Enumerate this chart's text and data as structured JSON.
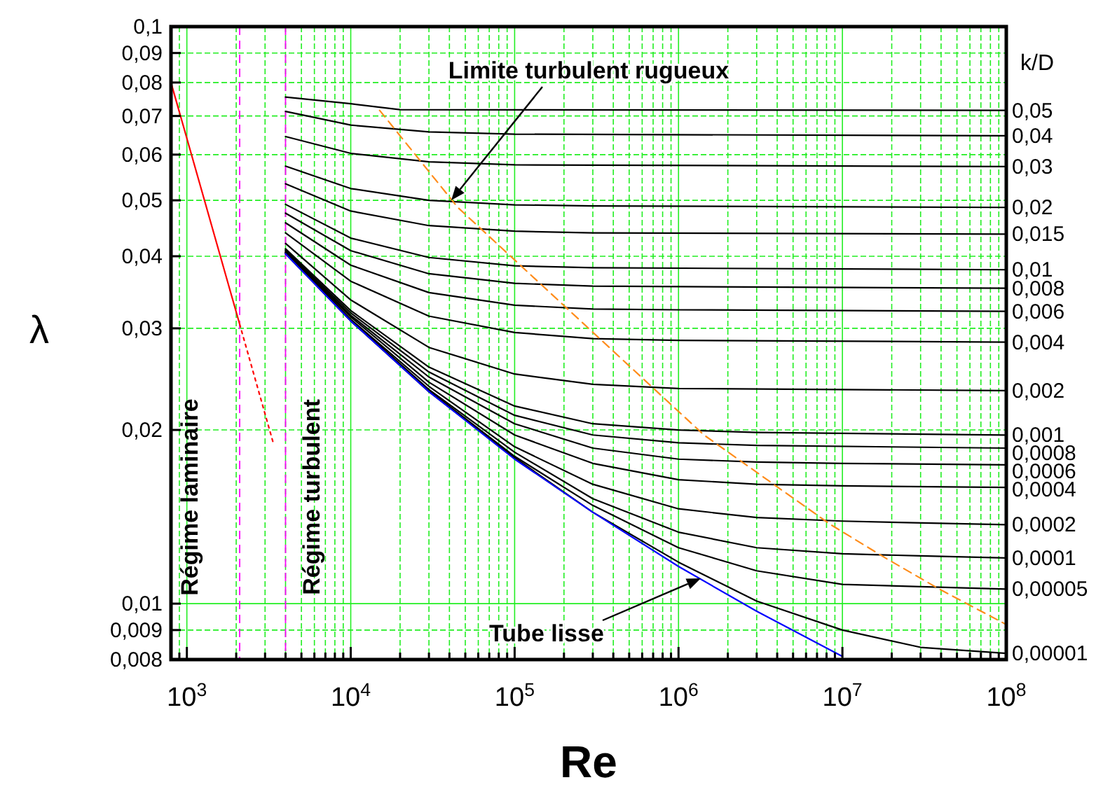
{
  "chart_data": {
    "type": "line",
    "xlabel": "Re",
    "ylabel": "λ",
    "legend_title": "k/D",
    "log": "xy",
    "grid": true,
    "xlim": [
      800,
      100000000
    ],
    "ylim": [
      0.008,
      0.1
    ],
    "xticks": [
      {
        "value": 900,
        "label": null
      },
      {
        "value": 1000,
        "label": "10$^{3}$"
      },
      {
        "value": 2000,
        "label": null
      },
      {
        "value": 3000,
        "label": null
      },
      {
        "value": 4000,
        "label": null
      },
      {
        "value": 5000,
        "label": null
      },
      {
        "value": 6000,
        "label": null
      },
      {
        "value": 7000,
        "label": null
      },
      {
        "value": 8000,
        "label": null
      },
      {
        "value": 9000,
        "label": null
      },
      {
        "value": 10000,
        "label": "10$^{4}$"
      },
      {
        "value": 20000,
        "label": null
      },
      {
        "value": 30000,
        "label": null
      },
      {
        "value": 40000,
        "label": null
      },
      {
        "value": 50000,
        "label": null
      },
      {
        "value": 60000,
        "label": null
      },
      {
        "value": 70000,
        "label": null
      },
      {
        "value": 80000,
        "label": null
      },
      {
        "value": 90000,
        "label": null
      },
      {
        "value": 100000,
        "label": "10$^{5}$"
      },
      {
        "value": 200000,
        "label": null
      },
      {
        "value": 300000,
        "label": null
      },
      {
        "value": 400000,
        "label": null
      },
      {
        "value": 500000,
        "label": null
      },
      {
        "value": 600000,
        "label": null
      },
      {
        "value": 700000,
        "label": null
      },
      {
        "value": 800000,
        "label": null
      },
      {
        "value": 900000,
        "label": null
      },
      {
        "value": 1000000,
        "label": "10$^{6}$"
      },
      {
        "value": 2000000,
        "label": null
      },
      {
        "value": 3000000,
        "label": null
      },
      {
        "value": 4000000,
        "label": null
      },
      {
        "value": 5000000,
        "label": null
      },
      {
        "value": 6000000,
        "label": null
      },
      {
        "value": 7000000,
        "label": null
      },
      {
        "value": 8000000,
        "label": null
      },
      {
        "value": 9000000,
        "label": null
      },
      {
        "value": 10000000,
        "label": "10$^{7}$"
      },
      {
        "value": 20000000,
        "label": null
      },
      {
        "value": 30000000,
        "label": null
      },
      {
        "value": 40000000,
        "label": null
      },
      {
        "value": 50000000,
        "label": null
      },
      {
        "value": 60000000,
        "label": null
      },
      {
        "value": 70000000,
        "label": null
      },
      {
        "value": 80000000,
        "label": null
      },
      {
        "value": 90000000,
        "label": null
      },
      {
        "value": 100000000,
        "label": "10$^{8}$"
      }
    ],
    "yticks": [
      {
        "value": 0.008,
        "label": "0,008"
      },
      {
        "value": 0.009,
        "label": "0,009"
      },
      {
        "value": 0.01,
        "label": "0,01"
      },
      {
        "value": 0.02,
        "label": "0,02"
      },
      {
        "value": 0.03,
        "label": "0,03"
      },
      {
        "value": 0.04,
        "label": "0,04"
      },
      {
        "value": 0.05,
        "label": "0,05"
      },
      {
        "value": 0.06,
        "label": "0,06"
      },
      {
        "value": 0.07,
        "label": "0,07"
      },
      {
        "value": 0.08,
        "label": "0,08"
      },
      {
        "value": 0.09,
        "label": "0,09"
      },
      {
        "value": 0.1,
        "label": "0,1"
      }
    ],
    "ref_lines": [
      {
        "axis": "x",
        "value": 2100,
        "color": "#ff00ff",
        "line_style": "dashed"
      },
      {
        "axis": "x",
        "value": 4000,
        "color": "#ff00ff",
        "line_style": "dashed"
      }
    ],
    "series": [
      {
        "color": "#ff0000",
        "line_style": "solid",
        "x": [
          800,
          2100
        ],
        "values": [
          0.08,
          0.0305
        ]
      },
      {
        "color": "#ff0000",
        "line_style": "dotted",
        "x": [
          2100,
          3400
        ],
        "values": [
          0.0305,
          0.0188
        ]
      },
      {
        "name": "0,05",
        "color": "#000000",
        "x": [
          4000,
          10000,
          20000,
          100000000
        ],
        "values": [
          0.0755,
          0.0735,
          0.0718,
          0.0716
        ]
      },
      {
        "name": "0,04",
        "color": "#000000",
        "x": [
          4000,
          10000,
          30000,
          100000,
          100000000
        ],
        "values": [
          0.0713,
          0.0675,
          0.0657,
          0.0651,
          0.0647
        ]
      },
      {
        "name": "0,03",
        "color": "#000000",
        "x": [
          4000,
          10000,
          30000,
          100000,
          100000000
        ],
        "values": [
          0.0645,
          0.0603,
          0.0583,
          0.0576,
          0.0572
        ]
      },
      {
        "name": "0,02",
        "color": "#000000",
        "x": [
          4000,
          10000,
          30000,
          100000,
          300000,
          100000000
        ],
        "values": [
          0.0573,
          0.0524,
          0.05,
          0.0491,
          0.0489,
          0.0486
        ]
      },
      {
        "name": "0,015",
        "color": "#000000",
        "x": [
          4000,
          10000,
          30000,
          100000,
          300000,
          100000000
        ],
        "values": [
          0.0534,
          0.0479,
          0.0452,
          0.0442,
          0.0439,
          0.0437
        ]
      },
      {
        "name": "0,01",
        "color": "#000000",
        "x": [
          4000,
          10000,
          30000,
          100000,
          300000,
          100000000
        ],
        "values": [
          0.0492,
          0.043,
          0.0398,
          0.0385,
          0.0382,
          0.0379
        ]
      },
      {
        "name": "0,008",
        "color": "#000000",
        "x": [
          4000,
          10000,
          30000,
          100000,
          300000,
          100000000
        ],
        "values": [
          0.0475,
          0.0409,
          0.0373,
          0.0359,
          0.0355,
          0.0352
        ]
      },
      {
        "name": "0,006",
        "color": "#000000",
        "x": [
          4000,
          10000,
          30000,
          100000,
          300000,
          1000000,
          100000000
        ],
        "values": [
          0.0457,
          0.0386,
          0.0346,
          0.0329,
          0.0324,
          0.0323,
          0.0321
        ]
      },
      {
        "name": "0,004",
        "color": "#000000",
        "x": [
          4000,
          10000,
          30000,
          100000,
          300000,
          1000000,
          100000000
        ],
        "values": [
          0.0439,
          0.0362,
          0.0315,
          0.0295,
          0.0288,
          0.0286,
          0.0284
        ]
      },
      {
        "name": "0,002",
        "color": "#000000",
        "x": [
          4000,
          10000,
          30000,
          100000,
          300000,
          1000000,
          100000000
        ],
        "values": [
          0.0421,
          0.0336,
          0.0278,
          0.025,
          0.024,
          0.0236,
          0.0234
        ]
      },
      {
        "name": "0,001",
        "color": "#000000",
        "x": [
          4000,
          10000,
          30000,
          100000,
          300000,
          1000000,
          3000000,
          100000000
        ],
        "values": [
          0.0412,
          0.0322,
          0.0257,
          0.022,
          0.0205,
          0.02,
          0.0198,
          0.0196
        ]
      },
      {
        "name": "0,0008",
        "color": "#000000",
        "x": [
          4000,
          10000,
          30000,
          100000,
          300000,
          1000000,
          3000000,
          100000000
        ],
        "values": [
          0.041,
          0.0319,
          0.0252,
          0.0212,
          0.0196,
          0.019,
          0.0188,
          0.0186
        ]
      },
      {
        "name": "0,0006",
        "color": "#000000",
        "x": [
          4000,
          10000,
          30000,
          100000,
          300000,
          1000000,
          3000000,
          10000000,
          100000000
        ],
        "values": [
          0.0409,
          0.0316,
          0.0247,
          0.0205,
          0.0186,
          0.0178,
          0.0176,
          0.0175,
          0.0174
        ]
      },
      {
        "name": "0,0004",
        "color": "#000000",
        "x": [
          4000,
          10000,
          30000,
          100000,
          300000,
          1000000,
          3000000,
          10000000,
          100000000
        ],
        "values": [
          0.0407,
          0.0314,
          0.0242,
          0.0196,
          0.0175,
          0.0164,
          0.0161,
          0.016,
          0.0159
        ]
      },
      {
        "name": "0,0002",
        "color": "#000000",
        "x": [
          4000,
          10000,
          30000,
          100000,
          300000,
          1000000,
          3000000,
          10000000,
          100000000
        ],
        "values": [
          0.0406,
          0.0311,
          0.0238,
          0.0187,
          0.0161,
          0.0146,
          0.0141,
          0.0139,
          0.0137
        ]
      },
      {
        "name": "0,0001",
        "color": "#000000",
        "x": [
          4000,
          10000,
          30000,
          100000,
          300000,
          1000000,
          3000000,
          10000000,
          30000000,
          100000000
        ],
        "values": [
          0.0406,
          0.031,
          0.0235,
          0.0183,
          0.0152,
          0.0133,
          0.0125,
          0.0122,
          0.0121,
          0.012
        ]
      },
      {
        "name": "0,00005",
        "color": "#000000",
        "x": [
          4000,
          10000,
          30000,
          100000,
          300000,
          1000000,
          3000000,
          10000000,
          30000000,
          100000000
        ],
        "values": [
          0.0405,
          0.0309,
          0.0234,
          0.018,
          0.0148,
          0.0125,
          0.0114,
          0.0108,
          0.0107,
          0.0106
        ]
      },
      {
        "name": "0,00001",
        "color": "#000000",
        "x": [
          4000,
          10000,
          30000,
          100000,
          300000,
          1000000,
          3000000,
          10000000,
          30000000,
          100000000
        ],
        "values": [
          0.0404,
          0.0309,
          0.0233,
          0.0179,
          0.0144,
          0.0118,
          0.0101,
          0.009,
          0.0084,
          0.0082
        ]
      },
      {
        "color": "#0000ff",
        "x": [
          4000,
          10000,
          30000,
          100000,
          300000,
          1000000,
          3000000,
          10000000
        ],
        "values": [
          0.0404,
          0.0309,
          0.0233,
          0.0178,
          0.0144,
          0.0116,
          0.0097,
          0.0081
        ]
      },
      {
        "color": "#ff8c1a",
        "line_style": "dashed",
        "x": [
          15000,
          45000,
          1430000,
          8500000,
          18300000,
          39000000,
          100000000
        ],
        "values": [
          0.0716,
          0.0486,
          0.0196,
          0.0137,
          0.012,
          0.0106,
          0.0092
        ]
      }
    ],
    "annotations": [
      "Limite turbulent rugueux",
      "Tube lisse",
      "Régime laminaire",
      "Régime turbulent"
    ]
  }
}
